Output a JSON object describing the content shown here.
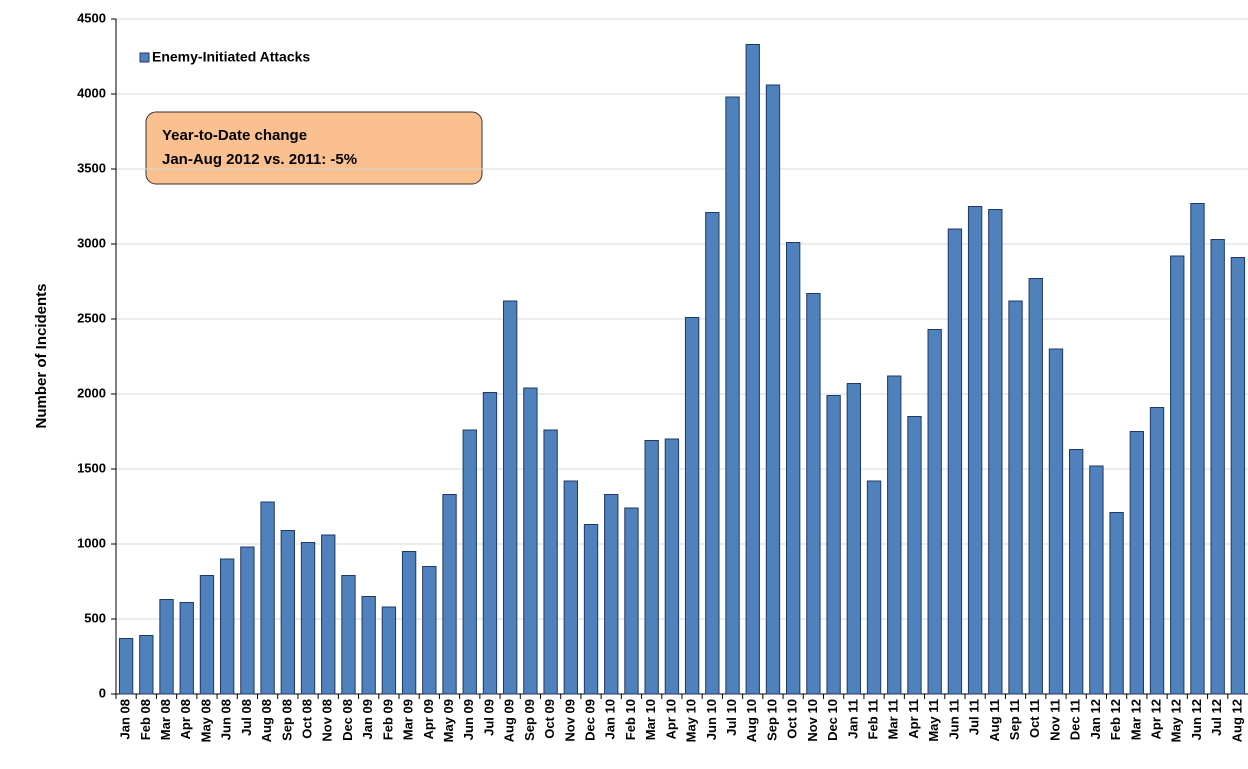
{
  "chart_data": {
    "type": "bar",
    "ylabel": "Number of Incidents",
    "annotation": [
      "Year-to-Date change",
      "Jan-Aug 2012 vs. 2011:  -5%"
    ],
    "categories": [
      "Jan 08",
      "Feb 08",
      "Mar 08",
      "Apr 08",
      "May 08",
      "Jun 08",
      "Jul 08",
      "Aug 08",
      "Sep 08",
      "Oct 08",
      "Nov 08",
      "Dec 08",
      "Jan 09",
      "Feb 09",
      "Mar 09",
      "Apr 09",
      "May 09",
      "Jun 09",
      "Jul 09",
      "Aug 09",
      "Sep 09",
      "Oct 09",
      "Nov 09",
      "Dec 09",
      "Jan 10",
      "Feb 10",
      "Mar 10",
      "Apr 10",
      "May 10",
      "Jun 10",
      "Jul 10",
      "Aug 10",
      "Sep 10",
      "Oct 10",
      "Nov 10",
      "Dec 10",
      "Jan 11",
      "Feb 11",
      "Mar 11",
      "Apr 11",
      "May 11",
      "Jun 11",
      "Jul 11",
      "Aug 11",
      "Sep 11",
      "Oct 11",
      "Nov 11",
      "Dec 11",
      "Jan 12",
      "Feb 12",
      "Mar 12",
      "Apr 12",
      "May 12",
      "Jun 12",
      "Jul 12",
      "Aug 12"
    ],
    "series": [
      {
        "name": "Enemy-Initiated Attacks",
        "color": "#4f81bd",
        "values": [
          370,
          390,
          630,
          610,
          790,
          900,
          980,
          1280,
          1090,
          1010,
          1060,
          790,
          650,
          580,
          950,
          850,
          1330,
          1760,
          2010,
          2620,
          2040,
          1760,
          1420,
          1130,
          1330,
          1240,
          1690,
          1700,
          2510,
          3210,
          3980,
          4330,
          4060,
          3010,
          2670,
          1990,
          2070,
          1420,
          2120,
          1850,
          2430,
          3100,
          3250,
          3230,
          2620,
          2770,
          2300,
          1630,
          1520,
          1210,
          1750,
          1910,
          2920,
          3270,
          3030,
          2910
        ]
      }
    ],
    "ylim": [
      0,
      4500
    ],
    "yticks": [
      0,
      500,
      1000,
      1500,
      2000,
      2500,
      3000,
      3500,
      4000,
      4500
    ],
    "grid": true,
    "legend": "upper left"
  }
}
